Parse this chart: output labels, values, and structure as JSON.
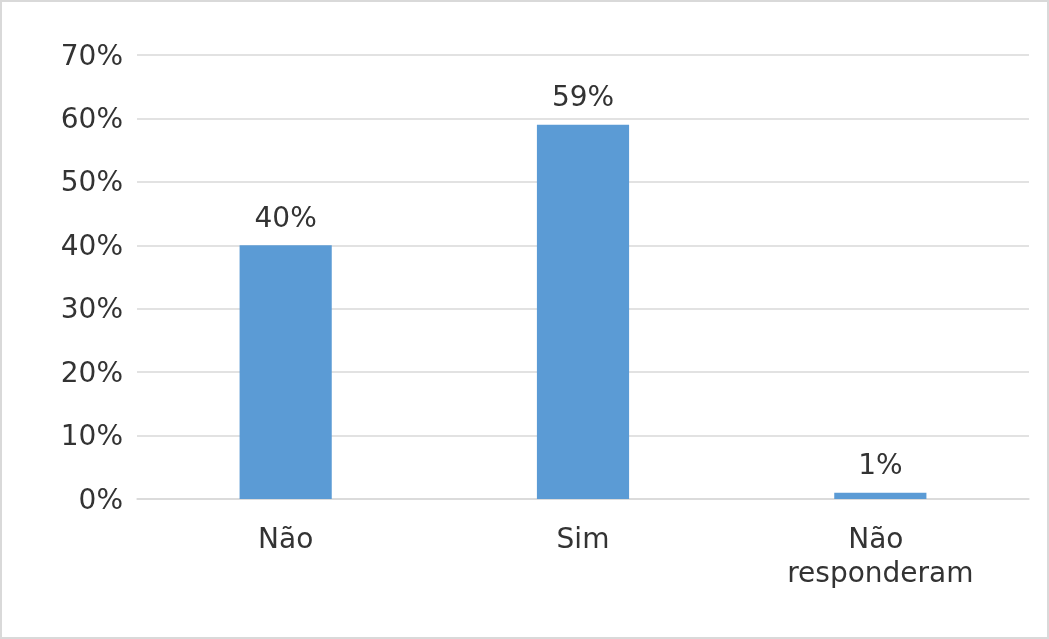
{
  "chart_data": {
    "type": "bar",
    "categories": [
      "Não",
      "Sim",
      "Não responderam"
    ],
    "values": [
      40,
      59,
      1
    ],
    "color": "#5b9bd5",
    "value_labels": [
      "40%",
      "59%",
      "1%"
    ],
    "ylim": [
      0,
      70
    ],
    "yticks": [
      {
        "value": 0,
        "label": "0%"
      },
      {
        "value": 10,
        "label": "10%"
      },
      {
        "value": 20,
        "label": "20%"
      },
      {
        "value": 30,
        "label": "30%"
      },
      {
        "value": 40,
        "label": "40%"
      },
      {
        "value": 50,
        "label": "50%"
      },
      {
        "value": 60,
        "label": "60%"
      },
      {
        "value": 70,
        "label": "70%"
      }
    ],
    "grid": "y"
  }
}
